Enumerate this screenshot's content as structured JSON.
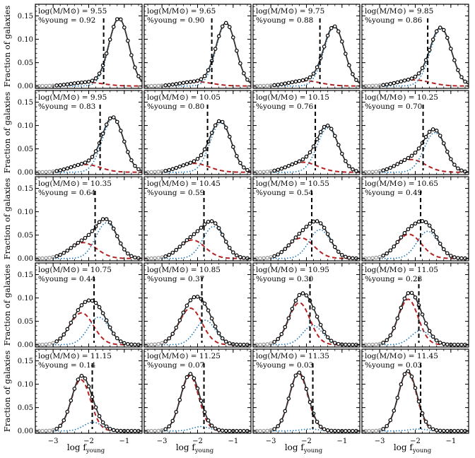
{
  "figure": {
    "ylabel": "Fraction of galaxies",
    "xlabel_main": "log f",
    "xlabel_sub": "young",
    "mass_label_prefix": "log(M/M⊙) = ",
    "young_label_prefix": "%young = "
  },
  "chart_data": {
    "type": "line",
    "layout": "5x4 grid of panels",
    "xlim": [
      -3.5,
      -0.5
    ],
    "ylim": [
      -0.005,
      0.175
    ],
    "x_ticks": [
      -3,
      -2,
      -1
    ],
    "x_tick_labels": [
      "−3",
      "−2",
      "−1"
    ],
    "y_ticks": [
      0.0,
      0.05,
      0.1,
      0.15
    ],
    "y_tick_labels": [
      "0.00",
      "0.05",
      "0.10",
      "0.15"
    ],
    "series_legend": {
      "points": "data (open circles)",
      "total_fit": "solid black/grey line",
      "old_component": "red dashed line",
      "young_component": "blue dotted line",
      "threshold": "vertical black dashed line"
    },
    "panels": [
      {
        "mass": "9.55",
        "young": "0.92",
        "old_mu": -2.05,
        "old_sig": 0.45,
        "young_mu": -1.15,
        "young_sig": 0.28,
        "total_peak": 0.145,
        "threshold": -1.58
      },
      {
        "mass": "9.65",
        "young": "0.90",
        "old_mu": -2.05,
        "old_sig": 0.45,
        "young_mu": -1.2,
        "young_sig": 0.28,
        "total_peak": 0.135,
        "threshold": -1.6
      },
      {
        "mass": "9.75",
        "young": "0.88",
        "old_mu": -2.05,
        "old_sig": 0.45,
        "young_mu": -1.22,
        "young_sig": 0.29,
        "total_peak": 0.128,
        "threshold": -1.62
      },
      {
        "mass": "9.85",
        "young": "0.86",
        "old_mu": -2.05,
        "old_sig": 0.45,
        "young_mu": -1.28,
        "young_sig": 0.3,
        "total_peak": 0.125,
        "threshold": -1.65
      },
      {
        "mass": "9.95",
        "young": "0.83",
        "old_mu": -2.1,
        "old_sig": 0.42,
        "young_mu": -1.32,
        "young_sig": 0.3,
        "total_peak": 0.118,
        "threshold": -1.68
      },
      {
        "mass": "10.05",
        "young": "0.80",
        "old_mu": -2.1,
        "old_sig": 0.42,
        "young_mu": -1.35,
        "young_sig": 0.3,
        "total_peak": 0.11,
        "threshold": -1.72
      },
      {
        "mass": "10.15",
        "young": "0.76",
        "old_mu": -2.1,
        "old_sig": 0.42,
        "young_mu": -1.4,
        "young_sig": 0.3,
        "total_peak": 0.1,
        "threshold": -1.75
      },
      {
        "mass": "10.25",
        "young": "0.70",
        "old_mu": -2.12,
        "old_sig": 0.4,
        "young_mu": -1.45,
        "young_sig": 0.3,
        "total_peak": 0.092,
        "threshold": -1.78
      },
      {
        "mass": "10.35",
        "young": "0.64",
        "old_mu": -2.15,
        "old_sig": 0.38,
        "young_mu": -1.5,
        "young_sig": 0.3,
        "total_peak": 0.085,
        "threshold": -1.82
      },
      {
        "mass": "10.45",
        "young": "0.59",
        "old_mu": -2.15,
        "old_sig": 0.36,
        "young_mu": -1.55,
        "young_sig": 0.3,
        "total_peak": 0.08,
        "threshold": -1.82
      },
      {
        "mass": "10.55",
        "young": "0.54",
        "old_mu": -2.15,
        "old_sig": 0.36,
        "young_mu": -1.62,
        "young_sig": 0.3,
        "total_peak": 0.08,
        "threshold": -1.85
      },
      {
        "mass": "10.65",
        "young": "0.49",
        "old_mu": -2.18,
        "old_sig": 0.35,
        "young_mu": -1.65,
        "young_sig": 0.3,
        "total_peak": 0.08,
        "threshold": -1.85
      },
      {
        "mass": "10.75",
        "young": "0.44",
        "old_mu": -2.2,
        "old_sig": 0.33,
        "young_mu": -1.72,
        "young_sig": 0.3,
        "total_peak": 0.095,
        "threshold": -1.85
      },
      {
        "mass": "10.85",
        "young": "0.37",
        "old_mu": -2.2,
        "old_sig": 0.32,
        "young_mu": -1.78,
        "young_sig": 0.28,
        "total_peak": 0.103,
        "threshold": -1.88
      },
      {
        "mass": "10.95",
        "young": "0.30",
        "old_mu": -2.2,
        "old_sig": 0.3,
        "young_mu": -1.82,
        "young_sig": 0.28,
        "total_peak": 0.11,
        "threshold": -1.9
      },
      {
        "mass": "11.05",
        "young": "0.23",
        "old_mu": -2.2,
        "old_sig": 0.28,
        "young_mu": -1.85,
        "young_sig": 0.27,
        "total_peak": 0.112,
        "threshold": -1.9
      },
      {
        "mass": "11.15",
        "young": "0.14",
        "old_mu": -2.22,
        "old_sig": 0.27,
        "young_mu": -1.88,
        "young_sig": 0.26,
        "total_peak": 0.118,
        "threshold": -1.9
      },
      {
        "mass": "11.25",
        "young": "0.07",
        "old_mu": -2.22,
        "old_sig": 0.26,
        "young_mu": -1.9,
        "young_sig": 0.25,
        "total_peak": 0.122,
        "threshold": -1.82
      },
      {
        "mass": "11.35",
        "young": "0.03",
        "old_mu": -2.22,
        "old_sig": 0.26,
        "young_mu": -1.9,
        "young_sig": 0.25,
        "total_peak": 0.125,
        "threshold": -1.82
      },
      {
        "mass": "11.45",
        "young": "0.03",
        "old_mu": -2.22,
        "old_sig": 0.26,
        "young_mu": -1.92,
        "young_sig": 0.25,
        "total_peak": 0.128,
        "threshold": -1.85
      }
    ]
  }
}
